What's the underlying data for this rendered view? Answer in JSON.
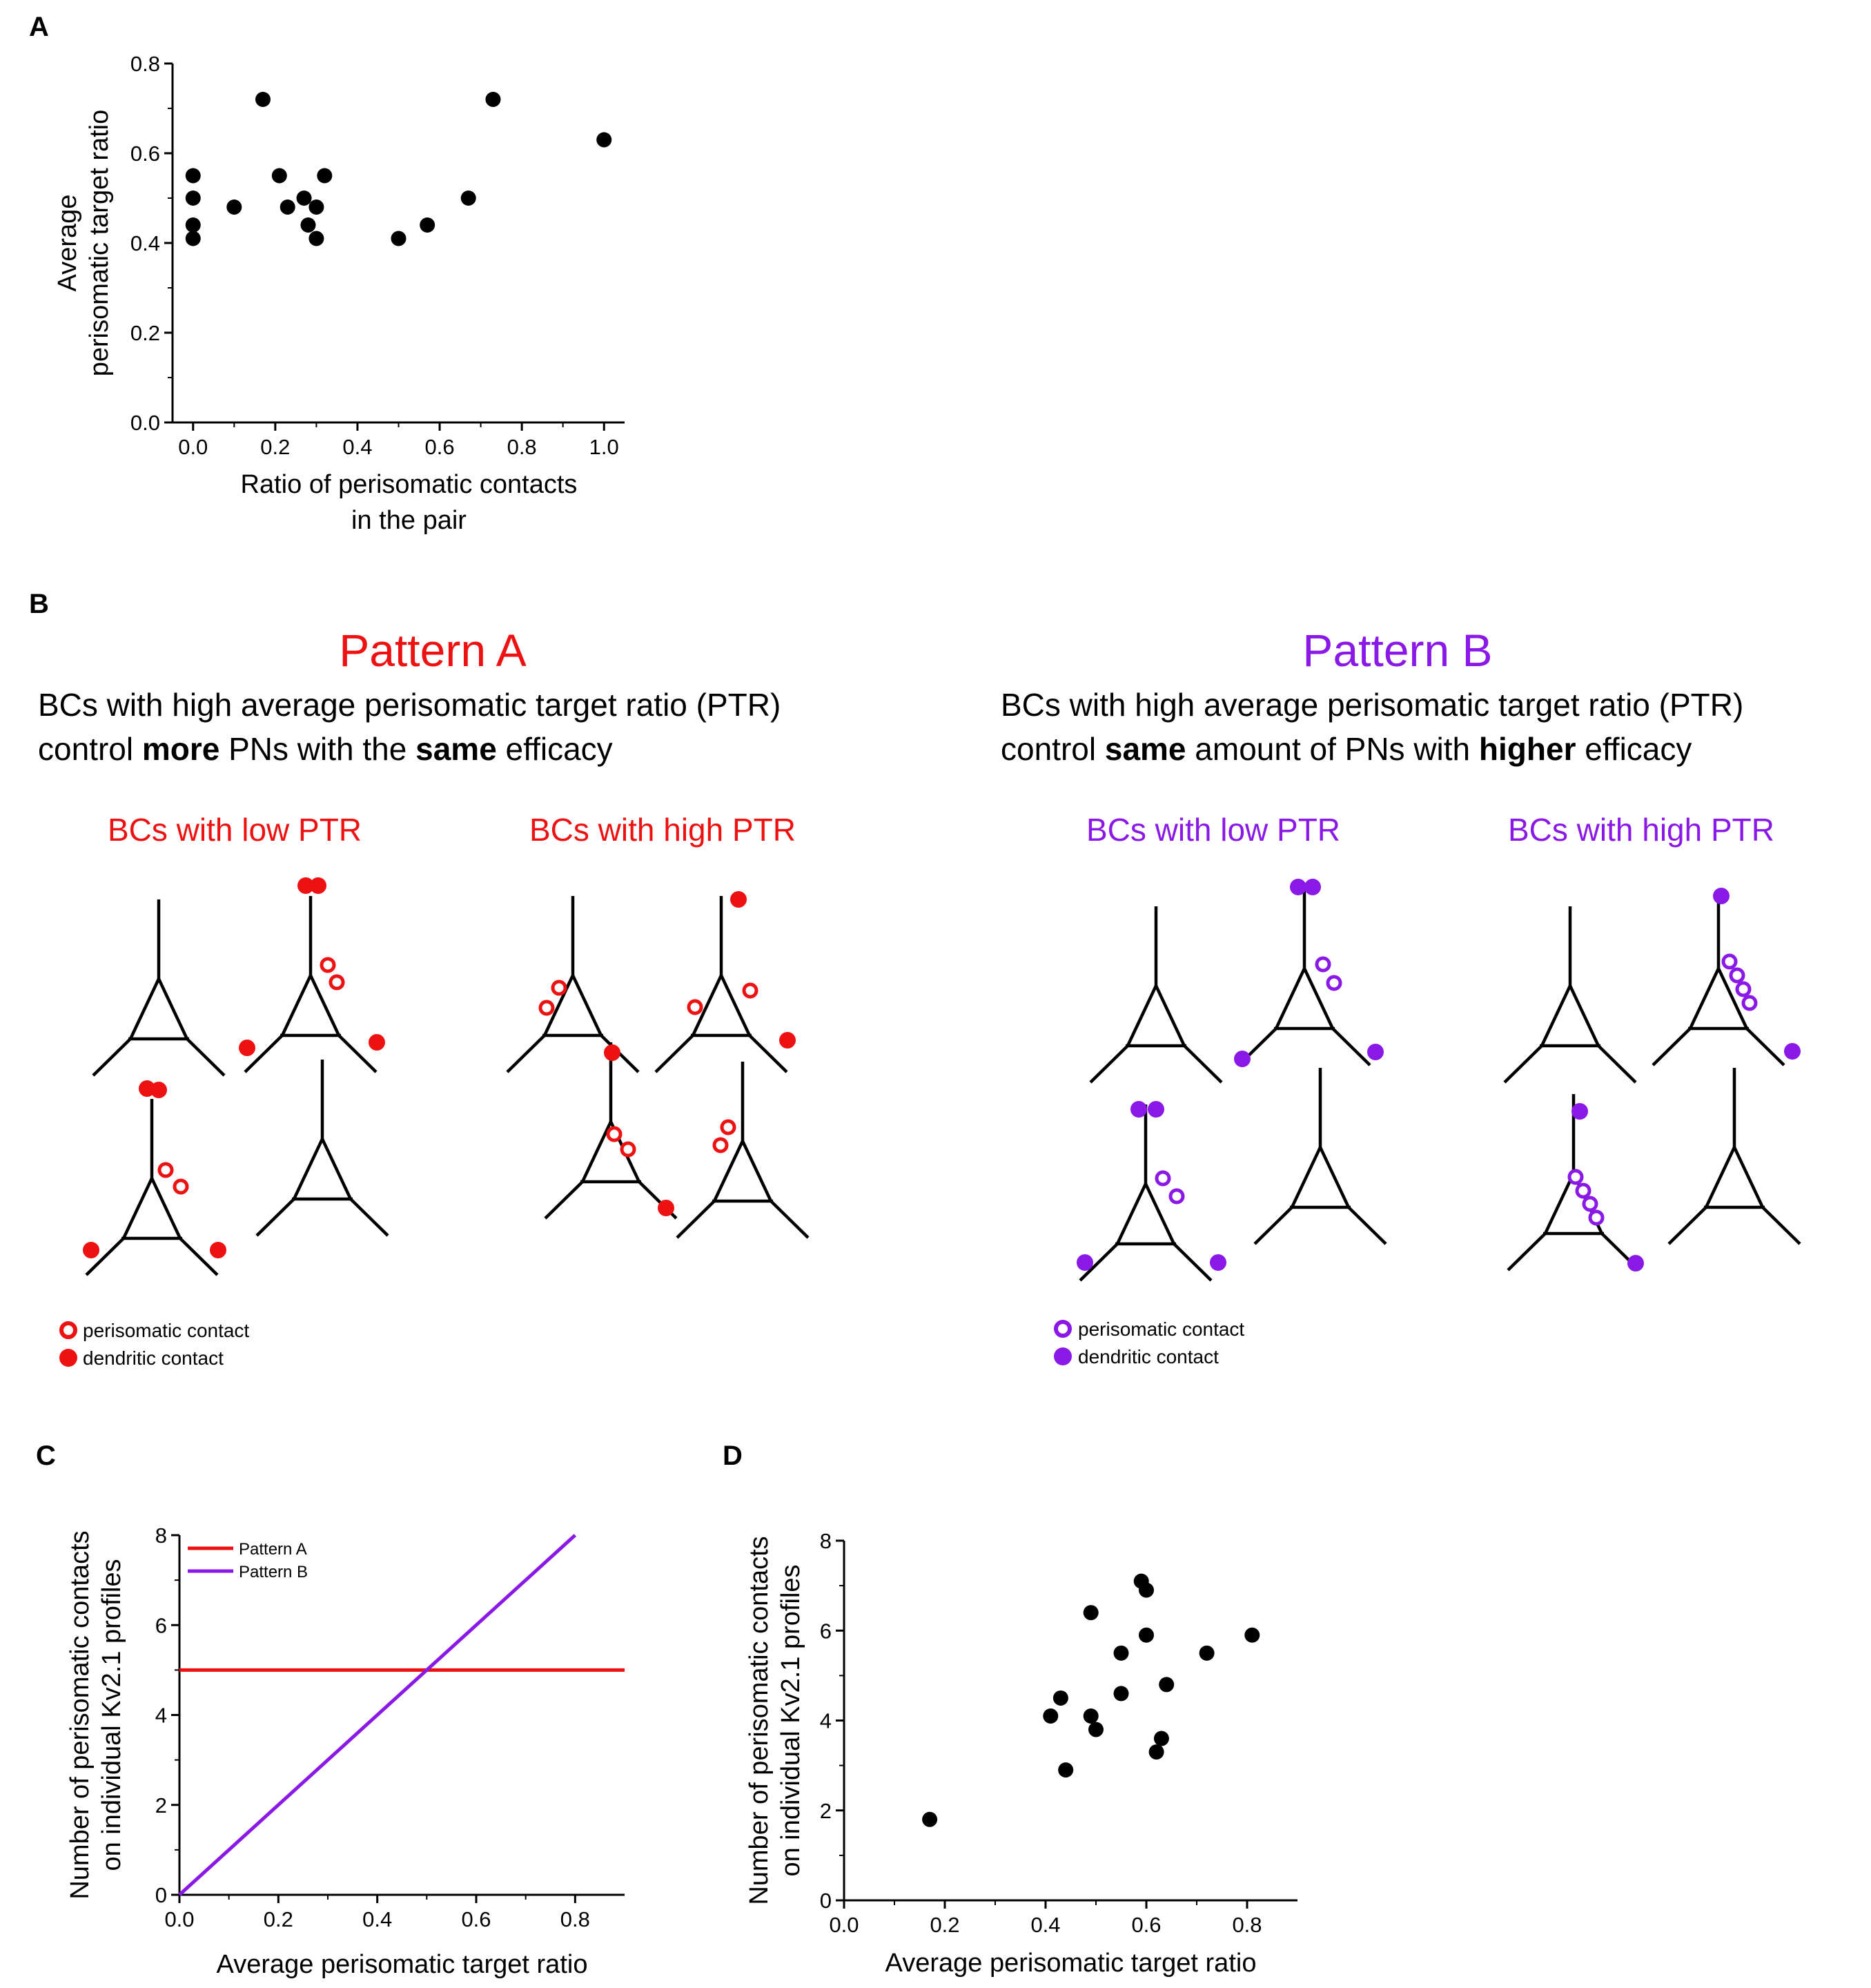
{
  "colors": {
    "patternA": "#ee1111",
    "patternB": "#8a18e6",
    "points": "#000000"
  },
  "panels": {
    "a": "A",
    "b": "B",
    "c": "C",
    "d": "D"
  },
  "chart_data": [
    {
      "panel": "A",
      "type": "scatter",
      "xlabel": [
        "Ratio of perisomatic contacts",
        "in the pair"
      ],
      "ylabel": [
        "Average",
        "perisomatic target ratio"
      ],
      "xlim": [
        -0.05,
        1.05
      ],
      "ylim": [
        0.0,
        0.8
      ],
      "xticks": [
        0.0,
        0.2,
        0.4,
        0.6,
        0.8,
        1.0
      ],
      "yticks": [
        0.0,
        0.2,
        0.4,
        0.6,
        0.8
      ],
      "xtick_labels": [
        "0.0",
        "0.2",
        "0.4",
        "0.6",
        "0.8",
        "1.0"
      ],
      "ytick_labels": [
        "0.0",
        "0.2",
        "0.4",
        "0.6",
        "0.8"
      ],
      "points": [
        [
          0.0,
          0.55
        ],
        [
          0.0,
          0.5
        ],
        [
          0.0,
          0.44
        ],
        [
          0.0,
          0.41
        ],
        [
          0.1,
          0.48
        ],
        [
          0.17,
          0.72
        ],
        [
          0.21,
          0.55
        ],
        [
          0.23,
          0.48
        ],
        [
          0.27,
          0.5
        ],
        [
          0.28,
          0.44
        ],
        [
          0.3,
          0.48
        ],
        [
          0.3,
          0.41
        ],
        [
          0.32,
          0.55
        ],
        [
          0.5,
          0.41
        ],
        [
          0.57,
          0.44
        ],
        [
          0.67,
          0.5
        ],
        [
          0.73,
          0.72
        ],
        [
          1.0,
          0.63
        ]
      ]
    },
    {
      "panel": "C",
      "type": "line",
      "xlabel": [
        "Average perisomatic target ratio"
      ],
      "ylabel": [
        "Number of perisomatic contacts",
        "on individual Kv2.1 profiles"
      ],
      "xlim": [
        0.0,
        0.9
      ],
      "ylim": [
        0,
        8
      ],
      "xticks": [
        0.0,
        0.2,
        0.4,
        0.6,
        0.8
      ],
      "yticks": [
        0,
        2,
        4,
        6,
        8
      ],
      "xtick_labels": [
        "0.0",
        "0.2",
        "0.4",
        "0.6",
        "0.8"
      ],
      "ytick_labels": [
        "0",
        "2",
        "4",
        "6",
        "8"
      ],
      "series": [
        {
          "name": "Pattern A",
          "x": [
            0.0,
            0.9
          ],
          "y": [
            5,
            5
          ]
        },
        {
          "name": "Pattern B",
          "x": [
            0.0,
            0.8
          ],
          "y": [
            0,
            8
          ]
        }
      ]
    },
    {
      "panel": "D",
      "type": "scatter",
      "xlabel": [
        "Average perisomatic target ratio"
      ],
      "ylabel": [
        "Number of perisomatic contacts",
        "on individual Kv2.1 profiles"
      ],
      "xlim": [
        0.0,
        0.9
      ],
      "ylim": [
        0,
        8
      ],
      "xticks": [
        0.0,
        0.2,
        0.4,
        0.6,
        0.8
      ],
      "yticks": [
        0,
        2,
        4,
        6,
        8
      ],
      "xtick_labels": [
        "0.0",
        "0.2",
        "0.4",
        "0.6",
        "0.8"
      ],
      "ytick_labels": [
        "0",
        "2",
        "4",
        "6",
        "8"
      ],
      "points": [
        [
          0.17,
          1.8
        ],
        [
          0.41,
          4.1
        ],
        [
          0.43,
          4.5
        ],
        [
          0.44,
          2.9
        ],
        [
          0.49,
          4.1
        ],
        [
          0.49,
          6.4
        ],
        [
          0.5,
          3.8
        ],
        [
          0.55,
          5.5
        ],
        [
          0.55,
          4.6
        ],
        [
          0.59,
          7.1
        ],
        [
          0.6,
          6.9
        ],
        [
          0.6,
          5.9
        ],
        [
          0.62,
          3.3
        ],
        [
          0.63,
          3.6
        ],
        [
          0.64,
          4.8
        ],
        [
          0.72,
          5.5
        ],
        [
          0.81,
          5.9
        ]
      ]
    }
  ],
  "patternA": {
    "title": "Pattern A",
    "line1": "BCs with high average perisomatic target ratio (PTR)",
    "line2_a": "control ",
    "line2_b": "more",
    "line2_c": " PNs with the ",
    "line2_d": "same",
    "line2_e": " efficacy",
    "low_label": "BCs with low PTR",
    "high_label": "BCs with high PTR",
    "legend_peri": "perisomatic contact",
    "legend_dend": "dendritic contact"
  },
  "patternB": {
    "title": "Pattern B",
    "line1": "BCs with high average perisomatic target ratio (PTR)",
    "line2_a": "control ",
    "line2_b": "same",
    "line2_c": " amount of PNs with ",
    "line2_d": "higher",
    "line2_e": " efficacy",
    "low_label": "BCs with low PTR",
    "high_label": "BCs with high PTR",
    "legend_peri": "perisomatic contact",
    "legend_dend": "dendritic contact"
  }
}
